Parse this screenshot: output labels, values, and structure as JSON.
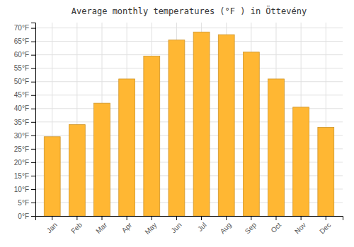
{
  "chart_data": {
    "type": "bar",
    "title": "Average monthly temperatures (°F ) in Öttevény",
    "categories": [
      "Jan",
      "Feb",
      "Mar",
      "Apr",
      "May",
      "Jun",
      "Jul",
      "Aug",
      "Sep",
      "Oct",
      "Nov",
      "Dec"
    ],
    "values": [
      29.5,
      34.0,
      42.0,
      51.0,
      59.5,
      65.5,
      68.5,
      67.5,
      61.0,
      51.0,
      40.5,
      33.0
    ],
    "color": "#FFB733",
    "ylim": [
      0,
      72
    ],
    "yticks": [
      {
        "value": 0,
        "label": "0°F"
      },
      {
        "value": 5,
        "label": "5°F"
      },
      {
        "value": 10,
        "label": "10°F"
      },
      {
        "value": 15,
        "label": "15°F"
      },
      {
        "value": 20,
        "label": "20°F"
      },
      {
        "value": 25,
        "label": "25°F"
      },
      {
        "value": 30,
        "label": "30°F"
      },
      {
        "value": 35,
        "label": "35°F"
      },
      {
        "value": 40,
        "label": "40°F"
      },
      {
        "value": 45,
        "label": "45°F"
      },
      {
        "value": 50,
        "label": "50°F"
      },
      {
        "value": 55,
        "label": "55°F"
      },
      {
        "value": 60,
        "label": "60°F"
      },
      {
        "value": 65,
        "label": "65°F"
      },
      {
        "value": 70,
        "label": "70°F"
      }
    ],
    "grid": true
  }
}
